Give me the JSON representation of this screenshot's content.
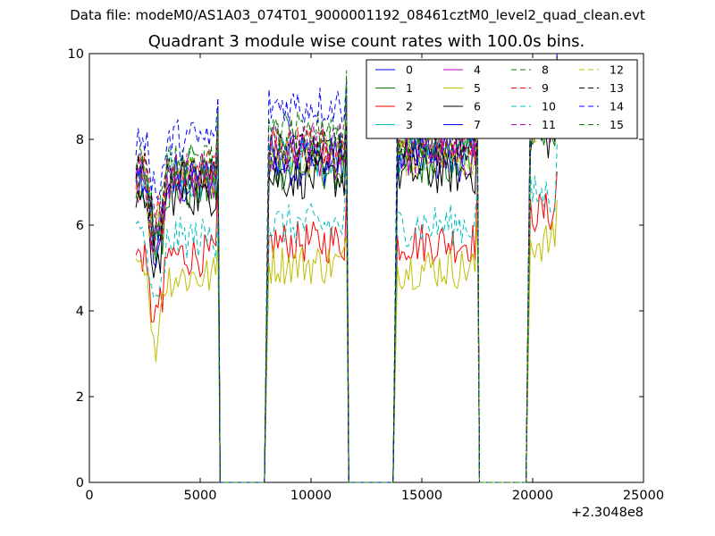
{
  "figure": {
    "supertitle": "Data file: modeM0/AS1A03_074T01_9000001192_08461cztM0_level2_quad_clean.evt"
  },
  "chart_data": {
    "type": "line",
    "title": "Quadrant 3 module wise count rates with 100.0s bins.",
    "xlabel": "",
    "ylabel": "",
    "x_offset_label": "+2.3048e8",
    "xlim": [
      0,
      25000
    ],
    "ylim": [
      0,
      10
    ],
    "x_ticks": [
      "0",
      "5000",
      "10000",
      "15000",
      "20000",
      "25000"
    ],
    "y_ticks": [
      "0",
      "2",
      "4",
      "6",
      "8",
      "10"
    ],
    "grid": false,
    "legend_location": "upper-right",
    "segments": [
      {
        "x_start": 2100,
        "x_end": 5800
      },
      {
        "x_start": 8100,
        "x_end": 11600
      },
      {
        "x_start": 13900,
        "x_end": 17500
      },
      {
        "x_start": 19900,
        "x_end": 21100
      }
    ],
    "gaps": [
      {
        "x_start": 5900,
        "x_end": 7900
      },
      {
        "x_start": 11700,
        "x_end": 13700
      },
      {
        "x_start": 17600,
        "x_end": 19700
      }
    ],
    "series": [
      {
        "name": "0",
        "color": "#0000ff",
        "style": "solid",
        "levels": [
          6.9,
          7.4,
          7.5,
          8.5
        ]
      },
      {
        "name": "1",
        "color": "#008000",
        "style": "solid",
        "levels": [
          6.8,
          7.3,
          7.4,
          8.3
        ]
      },
      {
        "name": "2",
        "color": "#ff0000",
        "style": "solid",
        "levels": [
          5.3,
          5.6,
          5.6,
          6.3
        ]
      },
      {
        "name": "3",
        "color": "#00bfbf",
        "style": "solid",
        "levels": [
          7.1,
          7.6,
          7.7,
          8.5
        ]
      },
      {
        "name": "4",
        "color": "#bf00bf",
        "style": "solid",
        "levels": [
          7.0,
          7.5,
          7.6,
          8.4
        ]
      },
      {
        "name": "5",
        "color": "#bfbf00",
        "style": "solid",
        "levels": [
          4.8,
          5.1,
          5.0,
          5.6
        ]
      },
      {
        "name": "6",
        "color": "#000000",
        "style": "solid",
        "levels": [
          6.7,
          7.1,
          7.2,
          8.0
        ]
      },
      {
        "name": "7",
        "color": "#0000ff",
        "style": "solid",
        "levels": [
          7.2,
          7.7,
          7.8,
          8.6
        ]
      },
      {
        "name": "8",
        "color": "#008000",
        "style": "dashed",
        "levels": [
          7.4,
          8.2,
          8.0,
          8.8
        ]
      },
      {
        "name": "9",
        "color": "#ff0000",
        "style": "dashed",
        "levels": [
          7.3,
          7.8,
          7.9,
          8.7
        ]
      },
      {
        "name": "10",
        "color": "#00bfbf",
        "style": "dashed",
        "levels": [
          5.7,
          6.0,
          6.0,
          6.7
        ]
      },
      {
        "name": "11",
        "color": "#bf00bf",
        "style": "dashed",
        "levels": [
          7.3,
          7.9,
          8.0,
          8.8
        ]
      },
      {
        "name": "12",
        "color": "#bfbf00",
        "style": "dashed",
        "levels": [
          7.1,
          7.6,
          7.6,
          8.4
        ]
      },
      {
        "name": "13",
        "color": "#000000",
        "style": "dashed",
        "levels": [
          7.2,
          7.7,
          7.8,
          8.6
        ]
      },
      {
        "name": "14",
        "color": "#0000ff",
        "style": "dashed",
        "levels": [
          8.0,
          8.8,
          8.7,
          9.2
        ]
      },
      {
        "name": "15",
        "color": "#008000",
        "style": "dashed",
        "levels": [
          7.4,
          8.0,
          8.0,
          8.8
        ]
      }
    ]
  }
}
